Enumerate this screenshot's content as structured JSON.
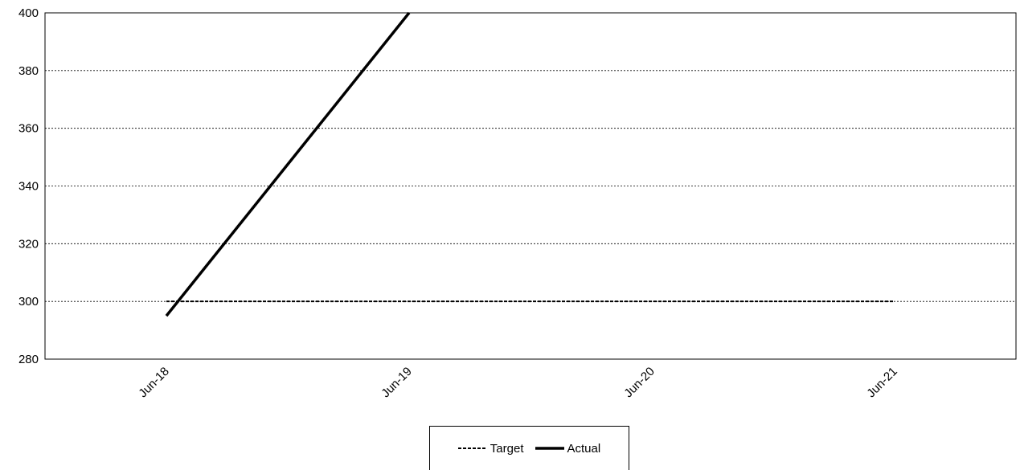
{
  "chart_data": {
    "type": "line",
    "title": "",
    "xlabel": "",
    "ylabel": "",
    "categories": [
      "Jun-18",
      "Jun-19",
      "Jun-20",
      "Jun-21"
    ],
    "ylim": [
      280,
      400
    ],
    "yticks": [
      "280",
      "300",
      "320",
      "340",
      "360",
      "380",
      "400"
    ],
    "grid": "horizontal dotted",
    "legend_position": "bottom-center",
    "series": [
      {
        "name": "Target",
        "style": "dashed",
        "color": "#000000",
        "values": [
          300,
          300,
          300,
          300
        ]
      },
      {
        "name": "Actual",
        "style": "solid",
        "color": "#000000",
        "values": [
          295,
          400,
          null,
          null
        ]
      }
    ]
  }
}
